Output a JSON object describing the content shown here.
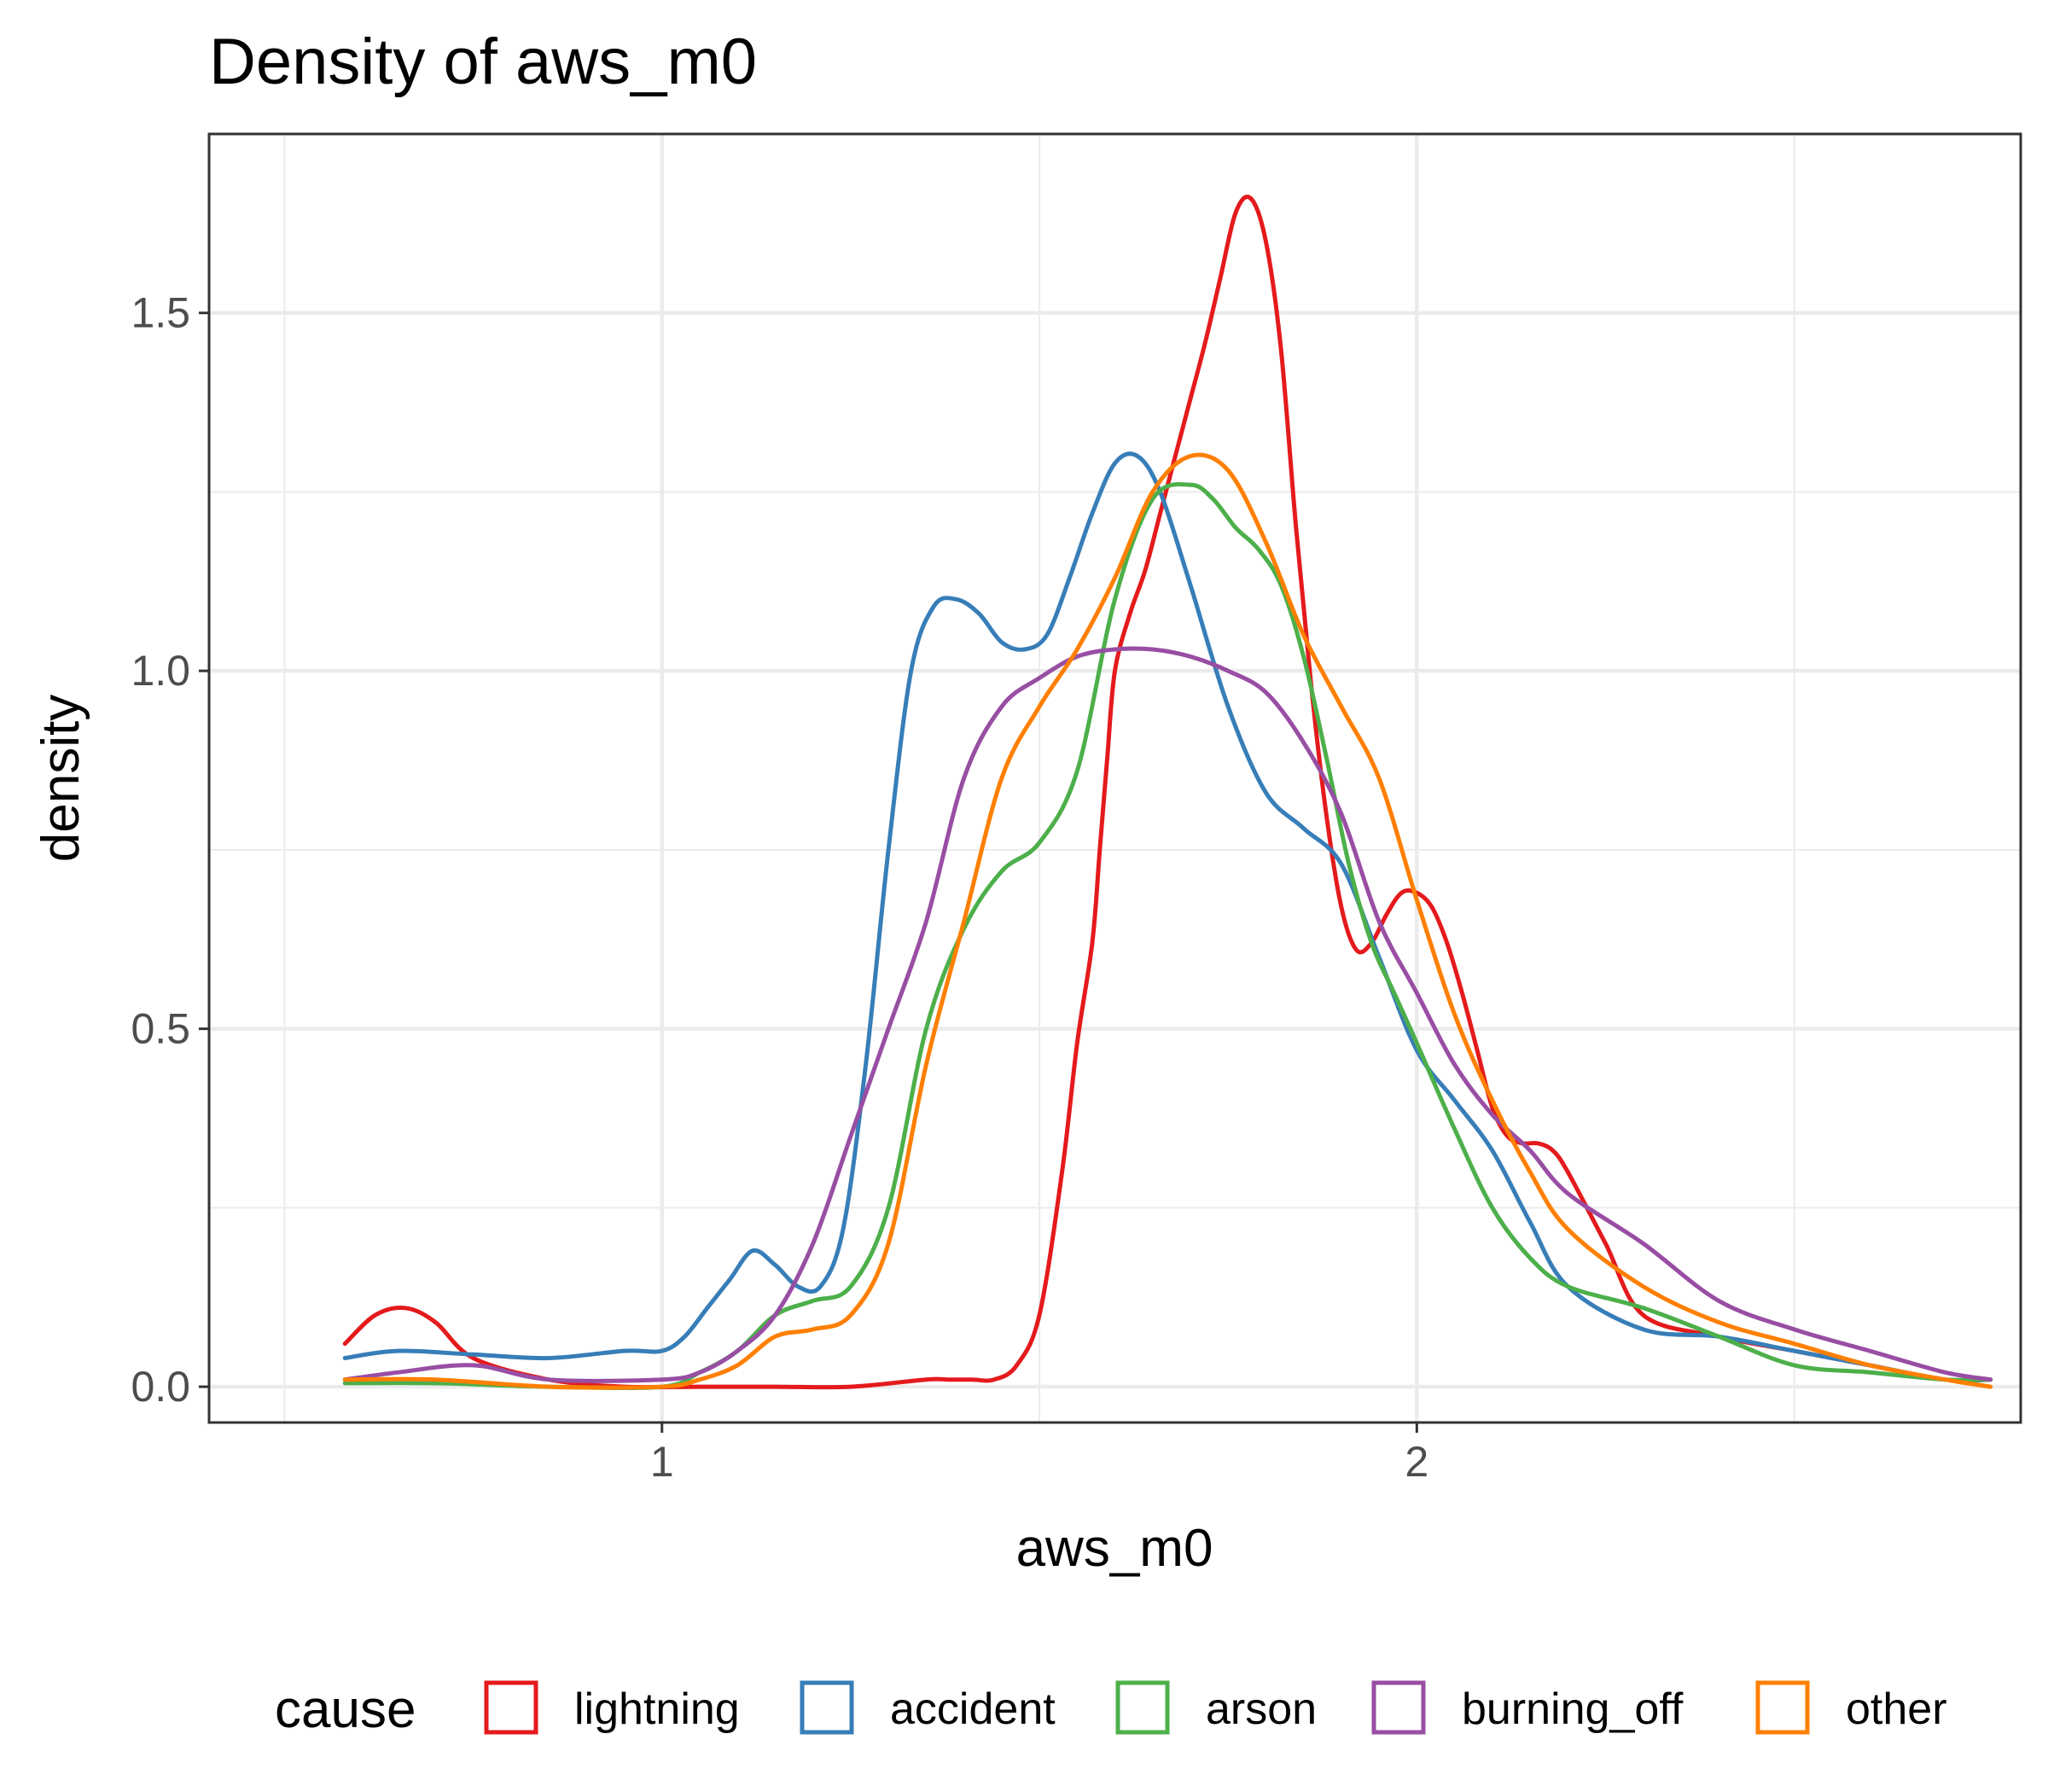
{
  "chart_data": {
    "type": "line",
    "title": "Density of aws_m0",
    "xlabel": "aws_m0",
    "ylabel": "density",
    "xlim": [
      0.4,
      2.8
    ],
    "ylim": [
      -0.05,
      1.75
    ],
    "x_ticks": [
      1,
      2
    ],
    "x_tick_labels": [
      "1",
      "2"
    ],
    "y_ticks": [
      0,
      0.5,
      1,
      1.5
    ],
    "y_tick_labels": [
      "0.0",
      "0.5",
      "1.0",
      "1.5"
    ],
    "grid": true,
    "legend_title": "cause",
    "legend_position": "bottom",
    "series": [
      {
        "name": "lightning",
        "color": "#E41A1C",
        "x": [
          0.58,
          0.62,
          0.66,
          0.7,
          0.75,
          0.85,
          0.95,
          1.05,
          1.15,
          1.25,
          1.35,
          1.38,
          1.41,
          1.44,
          1.47,
          1.5,
          1.53,
          1.55,
          1.57,
          1.58,
          1.59,
          1.6,
          1.62,
          1.64,
          1.66,
          1.68,
          1.7,
          1.72,
          1.74,
          1.76,
          1.78,
          1.8,
          1.82,
          1.84,
          1.86,
          1.88,
          1.9,
          1.92,
          1.94,
          1.96,
          1.98,
          2.0,
          2.02,
          2.04,
          2.06,
          2.08,
          2.1,
          2.12,
          2.14,
          2.16,
          2.18,
          2.2,
          2.25,
          2.3,
          2.4,
          2.5,
          2.6,
          2.7,
          2.76
        ],
        "y": [
          0.06,
          0.1,
          0.11,
          0.09,
          0.04,
          0.01,
          0.0,
          0.0,
          0.0,
          0.0,
          0.01,
          0.01,
          0.01,
          0.01,
          0.03,
          0.1,
          0.3,
          0.48,
          0.62,
          0.75,
          0.88,
          1.0,
          1.08,
          1.14,
          1.22,
          1.3,
          1.38,
          1.46,
          1.55,
          1.64,
          1.66,
          1.6,
          1.45,
          1.2,
          0.98,
          0.8,
          0.67,
          0.61,
          0.62,
          0.66,
          0.69,
          0.69,
          0.67,
          0.62,
          0.55,
          0.47,
          0.39,
          0.35,
          0.34,
          0.34,
          0.33,
          0.3,
          0.2,
          0.1,
          0.07,
          0.05,
          0.03,
          0.01,
          0.01
        ]
      },
      {
        "name": "accident",
        "color": "#377EB8",
        "x": [
          0.58,
          0.65,
          0.75,
          0.85,
          0.95,
          1.0,
          1.03,
          1.06,
          1.09,
          1.12,
          1.15,
          1.18,
          1.21,
          1.24,
          1.27,
          1.3,
          1.33,
          1.36,
          1.39,
          1.42,
          1.45,
          1.48,
          1.51,
          1.54,
          1.57,
          1.6,
          1.63,
          1.66,
          1.7,
          1.75,
          1.8,
          1.85,
          1.9,
          1.95,
          2.0,
          2.05,
          2.1,
          2.15,
          2.2,
          2.3,
          2.4,
          2.5,
          2.6,
          2.7,
          2.76
        ],
        "y": [
          0.04,
          0.05,
          0.045,
          0.04,
          0.05,
          0.05,
          0.07,
          0.11,
          0.15,
          0.19,
          0.17,
          0.14,
          0.14,
          0.22,
          0.45,
          0.75,
          1.0,
          1.09,
          1.1,
          1.08,
          1.04,
          1.03,
          1.05,
          1.13,
          1.22,
          1.29,
          1.3,
          1.25,
          1.12,
          0.95,
          0.83,
          0.78,
          0.73,
          0.6,
          0.47,
          0.4,
          0.33,
          0.23,
          0.14,
          0.08,
          0.07,
          0.05,
          0.03,
          0.01,
          0.01
        ]
      },
      {
        "name": "arson",
        "color": "#4DAF4A",
        "x": [
          0.58,
          0.7,
          0.85,
          1.0,
          1.05,
          1.1,
          1.15,
          1.2,
          1.25,
          1.3,
          1.35,
          1.4,
          1.45,
          1.5,
          1.55,
          1.6,
          1.65,
          1.7,
          1.73,
          1.76,
          1.79,
          1.82,
          1.85,
          1.88,
          1.91,
          1.94,
          1.97,
          2.0,
          2.05,
          2.1,
          2.15,
          2.2,
          2.3,
          2.4,
          2.5,
          2.6,
          2.7,
          2.76
        ],
        "y": [
          0.005,
          0.005,
          0.0,
          0.0,
          0.02,
          0.05,
          0.1,
          0.12,
          0.14,
          0.25,
          0.5,
          0.64,
          0.72,
          0.76,
          0.86,
          1.1,
          1.24,
          1.26,
          1.24,
          1.2,
          1.17,
          1.12,
          1.02,
          0.88,
          0.73,
          0.62,
          0.55,
          0.48,
          0.36,
          0.25,
          0.18,
          0.14,
          0.11,
          0.07,
          0.03,
          0.02,
          0.01,
          0.01
        ]
      },
      {
        "name": "burning_off",
        "color": "#984EA3",
        "x": [
          0.58,
          0.65,
          0.75,
          0.85,
          1.0,
          1.05,
          1.1,
          1.15,
          1.2,
          1.25,
          1.3,
          1.35,
          1.4,
          1.45,
          1.5,
          1.55,
          1.6,
          1.65,
          1.7,
          1.75,
          1.8,
          1.85,
          1.9,
          1.95,
          2.0,
          2.05,
          2.1,
          2.15,
          2.2,
          2.3,
          2.4,
          2.5,
          2.6,
          2.7,
          2.76
        ],
        "y": [
          0.01,
          0.02,
          0.03,
          0.01,
          0.01,
          0.02,
          0.05,
          0.1,
          0.2,
          0.35,
          0.5,
          0.65,
          0.85,
          0.95,
          0.99,
          1.02,
          1.03,
          1.03,
          1.02,
          1.0,
          0.97,
          0.9,
          0.8,
          0.65,
          0.55,
          0.45,
          0.38,
          0.33,
          0.27,
          0.2,
          0.12,
          0.08,
          0.05,
          0.02,
          0.01
        ]
      },
      {
        "name": "other",
        "color": "#FF7F00",
        "x": [
          0.58,
          0.7,
          0.85,
          1.0,
          1.05,
          1.1,
          1.15,
          1.2,
          1.25,
          1.3,
          1.35,
          1.4,
          1.45,
          1.5,
          1.55,
          1.6,
          1.65,
          1.7,
          1.75,
          1.8,
          1.85,
          1.9,
          1.95,
          2.0,
          2.05,
          2.1,
          2.15,
          2.2,
          2.3,
          2.4,
          2.5,
          2.6,
          2.7,
          2.76
        ],
        "y": [
          0.01,
          0.01,
          0.0,
          0.0,
          0.01,
          0.03,
          0.07,
          0.08,
          0.1,
          0.2,
          0.45,
          0.65,
          0.85,
          0.95,
          1.03,
          1.13,
          1.25,
          1.3,
          1.28,
          1.18,
          1.05,
          0.95,
          0.85,
          0.68,
          0.52,
          0.4,
          0.3,
          0.22,
          0.14,
          0.09,
          0.06,
          0.03,
          0.01,
          0.0
        ]
      }
    ]
  }
}
